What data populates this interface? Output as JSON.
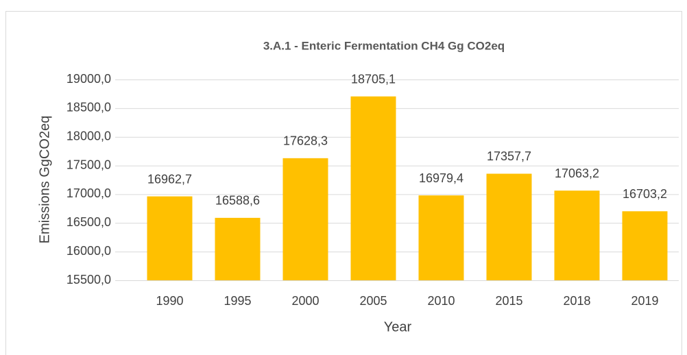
{
  "chart_data": {
    "type": "bar",
    "title": "3.A.1 - Enteric Fermentation  CH4 Gg CO2eq",
    "x_label": "Year",
    "y_label": "Emissions GgCO2eq",
    "categories": [
      "1990",
      "1995",
      "2000",
      "2005",
      "2010",
      "2015",
      "2018",
      "2019"
    ],
    "values": [
      16962.7,
      16588.6,
      17628.3,
      18705.1,
      16979.4,
      17357.7,
      17063.2,
      16703.2
    ],
    "value_labels": [
      "16962,7",
      "16588,6",
      "17628,3",
      "18705,1",
      "16979,4",
      "17357,7",
      "17063,2",
      "16703,2"
    ],
    "color": "#ffc000",
    "ylim": [
      15500,
      19000
    ],
    "yticks": [
      {
        "value": 15500,
        "label": "15500,0"
      },
      {
        "value": 16000,
        "label": "16000,0"
      },
      {
        "value": 16500,
        "label": "16500,0"
      },
      {
        "value": 17000,
        "label": "17000,0"
      },
      {
        "value": 17500,
        "label": "17500,0"
      },
      {
        "value": 18000,
        "label": "18000,0"
      },
      {
        "value": 18500,
        "label": "18500,0"
      },
      {
        "value": 19000,
        "label": "19000,0"
      }
    ],
    "grid": true
  }
}
